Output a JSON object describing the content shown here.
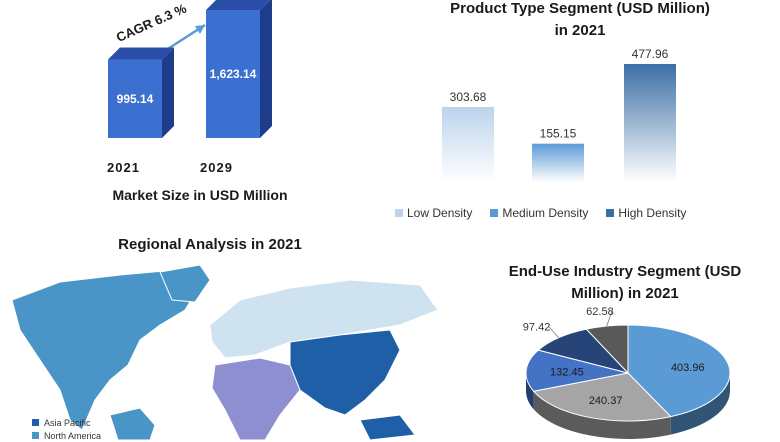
{
  "market": {
    "subtitle": "Market Size in USD Million",
    "cagr_label": "CAGR 6.3 %"
  },
  "product": {
    "title_line1": "Product Type Segment (USD Million)",
    "title_line2": "in 2021"
  },
  "regional": {
    "title": "Regional Analysis in 2021",
    "legend": [
      {
        "label": "Asia Pacific",
        "color": "#1f5fa8"
      },
      {
        "label": "North America",
        "color": "#4a95c8"
      }
    ]
  },
  "enduse": {
    "title_line1": "End-Use Industry Segment (USD",
    "title_line2": "Million) in 2021"
  },
  "chart_data": [
    {
      "type": "bar",
      "subtitle": "Market Size in USD Million",
      "categories": [
        "2021",
        "2029"
      ],
      "values": [
        995.14,
        1623.14
      ],
      "value_labels": [
        "995.14",
        "1,623.14"
      ],
      "annotation": "CAGR 6.3 %",
      "colors": {
        "bar": "#3b6fd0",
        "side": "#1d3c8a",
        "top": "#2a4ea8"
      }
    },
    {
      "type": "bar",
      "title": "Product Type Segment (USD Million) in 2021",
      "categories": [
        "Low Density",
        "Medium Density",
        "High Density"
      ],
      "values": [
        303.68,
        155.15,
        477.96
      ],
      "value_labels": [
        "303.68",
        "155.15",
        "477.96"
      ],
      "legend_position": "bottom",
      "colors": [
        "#bcd3ec",
        "#5b9bd5",
        "#3a6fa5"
      ]
    },
    {
      "type": "pie",
      "title": "End-Use Industry Segment (USD Million) in 2021",
      "values": [
        403.96,
        240.37,
        132.45,
        97.42,
        62.58
      ],
      "value_labels": [
        "403.96",
        "240.37",
        "132.45",
        "97.42",
        "62.58"
      ],
      "colors": [
        "#5b9bd5",
        "#a5a5a5",
        "#4472c4",
        "#264478",
        "#595959"
      ]
    }
  ]
}
